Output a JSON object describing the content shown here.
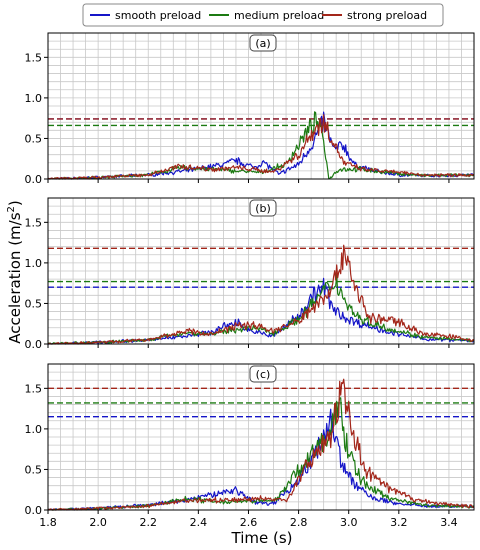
{
  "figure": {
    "xlabel": "Time (s)",
    "ylabel_main": "Acceleration (m/s",
    "ylabel_sup": "2",
    "ylabel_close": ")"
  },
  "legend": {
    "placement": "top-center",
    "entries": [
      {
        "label": "smooth preload",
        "color": "#1515c8"
      },
      {
        "label": "medium preload",
        "color": "#1c7a12"
      },
      {
        "label": "strong preload",
        "color": "#a3261a"
      }
    ]
  },
  "chart_data": [
    {
      "type": "line",
      "panel_label": "(a)",
      "xlim": [
        1.8,
        3.5
      ],
      "ylim": [
        0.0,
        1.8
      ],
      "xticks": [
        1.8,
        2.0,
        2.2,
        2.4,
        2.6,
        2.8,
        3.0,
        3.2,
        3.4
      ],
      "yticks": [
        0.0,
        0.5,
        1.0,
        1.5
      ],
      "grid": true,
      "thresholds": {
        "smooth preload": 0.74,
        "medium preload": 0.66,
        "strong preload": 0.74
      },
      "peaks": {
        "smooth preload": [
          [
            1.8,
            0.0
          ],
          [
            2.0,
            0.02
          ],
          [
            2.2,
            0.05
          ],
          [
            2.35,
            0.1
          ],
          [
            2.5,
            0.18
          ],
          [
            2.55,
            0.23
          ],
          [
            2.62,
            0.14
          ],
          [
            2.66,
            0.21
          ],
          [
            2.72,
            0.06
          ],
          [
            2.8,
            0.18
          ],
          [
            2.86,
            0.46
          ],
          [
            2.9,
            0.72
          ],
          [
            2.94,
            0.36
          ],
          [
            2.98,
            0.42
          ],
          [
            3.02,
            0.18
          ],
          [
            3.1,
            0.1
          ],
          [
            3.2,
            0.05
          ],
          [
            3.3,
            0.04
          ],
          [
            3.5,
            0.05
          ]
        ],
        "medium preload": [
          [
            1.8,
            0.0
          ],
          [
            2.0,
            0.02
          ],
          [
            2.2,
            0.05
          ],
          [
            2.33,
            0.14
          ],
          [
            2.45,
            0.12
          ],
          [
            2.55,
            0.1
          ],
          [
            2.65,
            0.08
          ],
          [
            2.75,
            0.18
          ],
          [
            2.82,
            0.52
          ],
          [
            2.87,
            0.72
          ],
          [
            2.9,
            0.5
          ],
          [
            2.92,
            0.0
          ],
          [
            2.96,
            0.12
          ],
          [
            3.05,
            0.12
          ],
          [
            3.15,
            0.08
          ],
          [
            3.3,
            0.04
          ],
          [
            3.5,
            0.05
          ]
        ],
        "strong preload": [
          [
            1.8,
            0.0
          ],
          [
            2.0,
            0.02
          ],
          [
            2.2,
            0.05
          ],
          [
            2.33,
            0.16
          ],
          [
            2.45,
            0.12
          ],
          [
            2.55,
            0.14
          ],
          [
            2.7,
            0.09
          ],
          [
            2.8,
            0.3
          ],
          [
            2.86,
            0.6
          ],
          [
            2.9,
            0.7
          ],
          [
            2.93,
            0.52
          ],
          [
            2.98,
            0.2
          ],
          [
            3.05,
            0.12
          ],
          [
            3.2,
            0.08
          ],
          [
            3.3,
            0.05
          ],
          [
            3.5,
            0.05
          ]
        ]
      }
    },
    {
      "type": "line",
      "panel_label": "(b)",
      "xlim": [
        1.8,
        3.5
      ],
      "ylim": [
        0.0,
        1.8
      ],
      "xticks": [
        1.8,
        2.0,
        2.2,
        2.4,
        2.6,
        2.8,
        3.0,
        3.2,
        3.4
      ],
      "yticks": [
        0.0,
        0.5,
        1.0,
        1.5
      ],
      "grid": true,
      "thresholds": {
        "smooth preload": 0.7,
        "medium preload": 0.77,
        "strong preload": 1.18
      },
      "peaks": {
        "smooth preload": [
          [
            1.8,
            0.0
          ],
          [
            2.0,
            0.02
          ],
          [
            2.2,
            0.05
          ],
          [
            2.35,
            0.1
          ],
          [
            2.45,
            0.15
          ],
          [
            2.55,
            0.27
          ],
          [
            2.62,
            0.15
          ],
          [
            2.7,
            0.1
          ],
          [
            2.8,
            0.35
          ],
          [
            2.86,
            0.6
          ],
          [
            2.9,
            0.7
          ],
          [
            2.94,
            0.42
          ],
          [
            3.0,
            0.3
          ],
          [
            3.1,
            0.2
          ],
          [
            3.2,
            0.12
          ],
          [
            3.3,
            0.06
          ],
          [
            3.5,
            0.04
          ]
        ],
        "medium preload": [
          [
            1.8,
            0.0
          ],
          [
            2.0,
            0.02
          ],
          [
            2.2,
            0.05
          ],
          [
            2.35,
            0.14
          ],
          [
            2.45,
            0.12
          ],
          [
            2.55,
            0.18
          ],
          [
            2.62,
            0.2
          ],
          [
            2.7,
            0.14
          ],
          [
            2.8,
            0.3
          ],
          [
            2.88,
            0.58
          ],
          [
            2.95,
            0.78
          ],
          [
            2.99,
            0.5
          ],
          [
            3.05,
            0.3
          ],
          [
            3.15,
            0.2
          ],
          [
            3.3,
            0.08
          ],
          [
            3.5,
            0.04
          ]
        ],
        "strong preload": [
          [
            1.8,
            0.0
          ],
          [
            2.0,
            0.02
          ],
          [
            2.2,
            0.05
          ],
          [
            2.35,
            0.16
          ],
          [
            2.45,
            0.12
          ],
          [
            2.55,
            0.22
          ],
          [
            2.62,
            0.24
          ],
          [
            2.7,
            0.16
          ],
          [
            2.8,
            0.28
          ],
          [
            2.9,
            0.58
          ],
          [
            2.95,
            0.8
          ],
          [
            2.98,
            1.18
          ],
          [
            3.02,
            0.76
          ],
          [
            3.08,
            0.32
          ],
          [
            3.2,
            0.28
          ],
          [
            3.3,
            0.12
          ],
          [
            3.4,
            0.1
          ],
          [
            3.5,
            0.04
          ]
        ]
      }
    },
    {
      "type": "line",
      "panel_label": "(c)",
      "xlim": [
        1.8,
        3.5
      ],
      "ylim": [
        0.0,
        1.8
      ],
      "xticks": [
        1.8,
        2.0,
        2.2,
        2.4,
        2.6,
        2.8,
        3.0,
        3.2,
        3.4
      ],
      "yticks": [
        0.0,
        0.5,
        1.0,
        1.5
      ],
      "grid": true,
      "thresholds": {
        "smooth preload": 1.15,
        "medium preload": 1.32,
        "strong preload": 1.5
      },
      "peaks": {
        "smooth preload": [
          [
            1.8,
            0.0
          ],
          [
            2.0,
            0.02
          ],
          [
            2.2,
            0.06
          ],
          [
            2.35,
            0.12
          ],
          [
            2.5,
            0.22
          ],
          [
            2.55,
            0.25
          ],
          [
            2.62,
            0.1
          ],
          [
            2.7,
            0.08
          ],
          [
            2.8,
            0.38
          ],
          [
            2.87,
            0.7
          ],
          [
            2.93,
            1.15
          ],
          [
            2.97,
            0.6
          ],
          [
            3.02,
            0.32
          ],
          [
            3.1,
            0.14
          ],
          [
            3.2,
            0.08
          ],
          [
            3.3,
            0.05
          ],
          [
            3.5,
            0.04
          ]
        ],
        "medium preload": [
          [
            1.8,
            0.0
          ],
          [
            2.0,
            0.02
          ],
          [
            2.2,
            0.05
          ],
          [
            2.35,
            0.14
          ],
          [
            2.5,
            0.1
          ],
          [
            2.62,
            0.12
          ],
          [
            2.7,
            0.1
          ],
          [
            2.85,
            0.68
          ],
          [
            2.92,
            0.9
          ],
          [
            2.96,
            1.32
          ],
          [
            3.0,
            0.7
          ],
          [
            3.05,
            0.36
          ],
          [
            3.15,
            0.16
          ],
          [
            3.3,
            0.06
          ],
          [
            3.5,
            0.04
          ]
        ],
        "strong preload": [
          [
            1.8,
            0.0
          ],
          [
            2.0,
            0.02
          ],
          [
            2.2,
            0.05
          ],
          [
            2.35,
            0.12
          ],
          [
            2.5,
            0.12
          ],
          [
            2.65,
            0.14
          ],
          [
            2.75,
            0.12
          ],
          [
            2.88,
            0.78
          ],
          [
            2.93,
            0.9
          ],
          [
            2.97,
            1.5
          ],
          [
            3.01,
            1.1
          ],
          [
            3.06,
            0.5
          ],
          [
            3.15,
            0.28
          ],
          [
            3.25,
            0.14
          ],
          [
            3.35,
            0.08
          ],
          [
            3.5,
            0.04
          ]
        ]
      }
    }
  ]
}
